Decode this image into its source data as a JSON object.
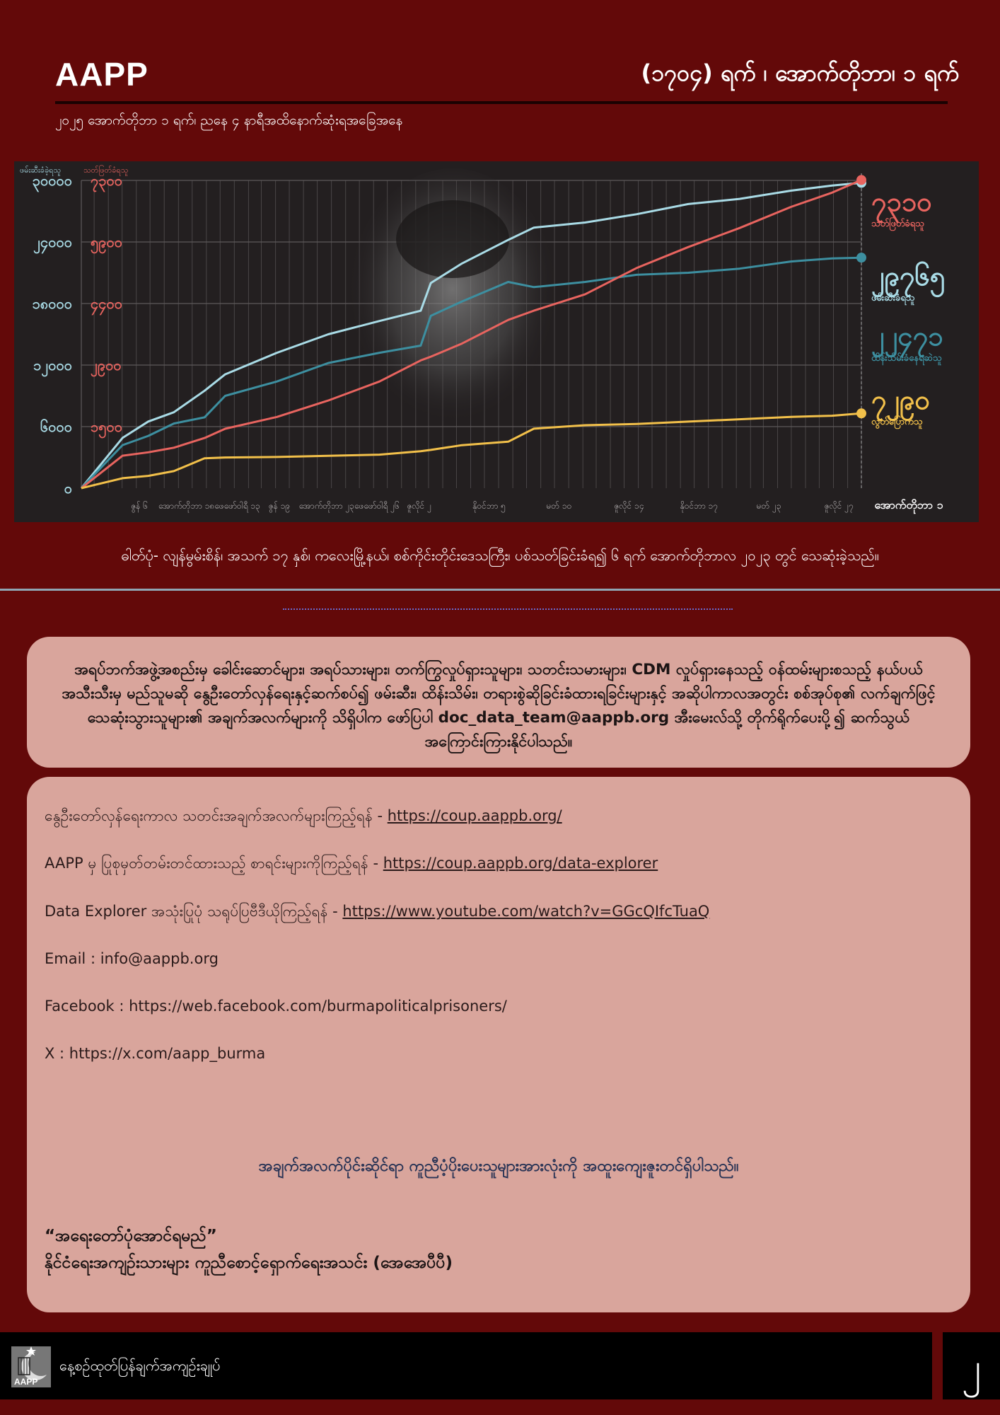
{
  "header": {
    "brand": "AAPP",
    "title": "(၁၇၀၄) ရက် ၊ အောက်တိုဘာ၊ ၁ ရက်",
    "subtitle": "၂၀၂၅ အောက်တိုဘာ ၁ ရက်၊ ညနေ ၄ နာရီအထိနောက်ဆုံးရအခြေအနေ"
  },
  "chart_data": {
    "type": "line",
    "left_axis_label": "ဖမ်းဆီးခံခဲ့ရသူ",
    "right_axis_label": "သတ်ဖြတ်ခံရသူ",
    "left_ticks": [
      "၀",
      "၆၀၀၀",
      "၁၂၀၀၀",
      "၁၈၀၀၀",
      "၂၄၀၀၀",
      "၃၀၀၀၀"
    ],
    "left_ylim": [
      0,
      30000
    ],
    "right_ticks": [
      "၁၅၀၀",
      "၂၉၀၀",
      "၄၄၀၀",
      "၅၉၀၀",
      "၇၃၀၀"
    ],
    "right_ylim": [
      0,
      7300
    ],
    "xlim": [
      "2021-02-01",
      "2025-10-01"
    ],
    "x_tick_labels": [
      "ဇွန် ၆",
      "အောက်တိုဘာ ၁၈ဖေဖော်ဝါရီ ၁၃",
      "ဇွန် ၁၉",
      "အောက်တိုဘာ ၂၃ဖေဖော်ဝါရီ ၂၆",
      "ဇူလိုင် ၂",
      "နိုဝင်ဘာ ၅",
      "မတ် ၁၀",
      "ဇူလိုင် ၁၄",
      "နိုဝင်ဘာ ၁၇",
      "မတ် ၂၃",
      "ဇူလိုင် ၂၇",
      "အောက်တိုဘာ ၁"
    ],
    "grid": true,
    "legend_placement": "right",
    "x": [
      "2021-02-01",
      "2021-05-02",
      "2021-06-27",
      "2021-08-22",
      "2021-10-28",
      "2021-12-12",
      "2022-04-04",
      "2022-07-25",
      "2022-11-14",
      "2023-02-12",
      "2023-03-06",
      "2023-05-13",
      "2023-08-22",
      "2023-10-17",
      "2024-02-06",
      "2024-05-28",
      "2024-09-18",
      "2025-01-08",
      "2025-04-30",
      "2025-07-29",
      "2025-10-01"
    ],
    "series": [
      {
        "name": "ဖမ်းဆီးခံရသူ",
        "total": "၂၉၇၆၅",
        "axis": "left",
        "color": "#a9dbe6",
        "values": [
          0,
          4900,
          6500,
          7400,
          9500,
          11100,
          13200,
          15000,
          16300,
          17300,
          20000,
          21900,
          24200,
          25400,
          25900,
          26700,
          27700,
          28200,
          29000,
          29500,
          29765
        ]
      },
      {
        "name": "ထိန်းသိမ်းခံနေရဆဲသူ",
        "total": "၂၂၄၇၁",
        "axis": "left",
        "color": "#3d8fa0",
        "values": [
          0,
          4200,
          5100,
          6300,
          6900,
          9000,
          10400,
          12200,
          13200,
          13900,
          16800,
          18200,
          20100,
          19600,
          20100,
          20800,
          21000,
          21400,
          22100,
          22400,
          22471
        ]
      },
      {
        "name": "သတ်ဖြတ်ခံရသူ",
        "total": "၇၃၁၀",
        "axis": "right",
        "color": "#e8645f",
        "values": [
          0,
          770,
          850,
          960,
          1190,
          1410,
          1690,
          2080,
          2530,
          3030,
          3120,
          3430,
          3990,
          4210,
          4600,
          5220,
          5720,
          6170,
          6670,
          7010,
          7310
        ]
      },
      {
        "name": "လွတ်ပြောက်သူ",
        "total": "၇၂၉၀",
        "axis": "left",
        "color": "#f2c04a",
        "values": [
          0,
          970,
          1200,
          1660,
          2920,
          2990,
          3040,
          3150,
          3270,
          3610,
          3730,
          4190,
          4530,
          5800,
          6140,
          6260,
          6490,
          6720,
          6950,
          7060,
          7290
        ]
      }
    ]
  },
  "caption": "ဓါတ်ပုံ- လျန်မွမ်းစိန်၊ အသက် ၁၇ နှစ်၊ ကလေးမြို့နယ်၊ စစ်ကိုင်းတိုင်းဒေသကြီး၊ ပစ်သတ်ခြင်းခံရ၍ ၆ ရက် အောက်တိုဘာလ ၂၀၂၃ တွင် သေဆုံးခဲ့သည်။",
  "notice": "အရပ်ဘက်အဖွဲ့အစည်းမှ ခေါင်းဆောင်များ၊ အရပ်သားများ၊ တက်ကြွလှုပ်ရှားသူများ၊ သတင်းသမားများ၊ CDM လှုပ်ရှားနေသည့် ဝန်ထမ်းများစသည့် နယ်ပယ်အသီးသီးမှ မည်သူမဆို နွေဦးတော်လှန်ရေးနှင့်ဆက်စပ်၍ ဖမ်းဆီး၊ ထိန်းသိမ်း၊ တရားစွဲဆိုခြင်းခံထားရခြင်းများနှင့် အဆိုပါကာလအတွင်း စစ်အုပ်စု၏ လက်ချက်ဖြင့် သေဆုံးသွားသူများ၏ အချက်အလက်များကို သိရှိပါက ဖော်ပြပါ doc_data_team@aappb.org အီးမေးလ်သို့ တိုက်ရိုက်ပေးပို့၍ ဆက်သွယ်အကြောင်းကြားနိုင်ပါသည်။",
  "links": [
    {
      "label": "နွေဦးတော်လှန်ရေးကာလ သတင်းအချက်အလက်များကြည့်ရန် - ",
      "url": "https://coup.aappb.org/"
    },
    {
      "label": "AAPP မှ ပြုစုမှတ်တမ်းတင်ထားသည့် စာရင်းများကိုကြည့်ရန် - ",
      "url": "https://coup.aappb.org/data-explorer"
    },
    {
      "label": "Data Explorer အသုံးပြုပုံ သရုပ်ပြဗီဒီယိုကြည့်ရန် -  ",
      "url": "https://www.youtube.com/watch?v=GGcQIfcTuaQ"
    }
  ],
  "contacts": [
    "Email : info@aappb.org",
    "Facebook : https://web.facebook.com/burmapoliticalprisoners/",
    "X : https://x.com/aapp_burma"
  ],
  "thanks": "အချက်အလက်ပိုင်းဆိုင်ရာ ကူညီပံ့ပိုးပေးသူများအားလုံးကို အထူးကျေးဇူးတင်ရှိပါသည်။",
  "slogan": "“အရေးတော်ပုံအောင်ရမည်”",
  "org_name": "နိုင်ငံရေးအကျဉ်းသားများ ကူညီစောင့်ရှောက်ရေးအသင်း (အေအေပီပီ)",
  "footer": {
    "logo_text": "AAPP",
    "text": "နေ့စဉ်ထုတ်ပြန်ချက်အကျဉ်းချုပ်",
    "page_number": "၂"
  }
}
